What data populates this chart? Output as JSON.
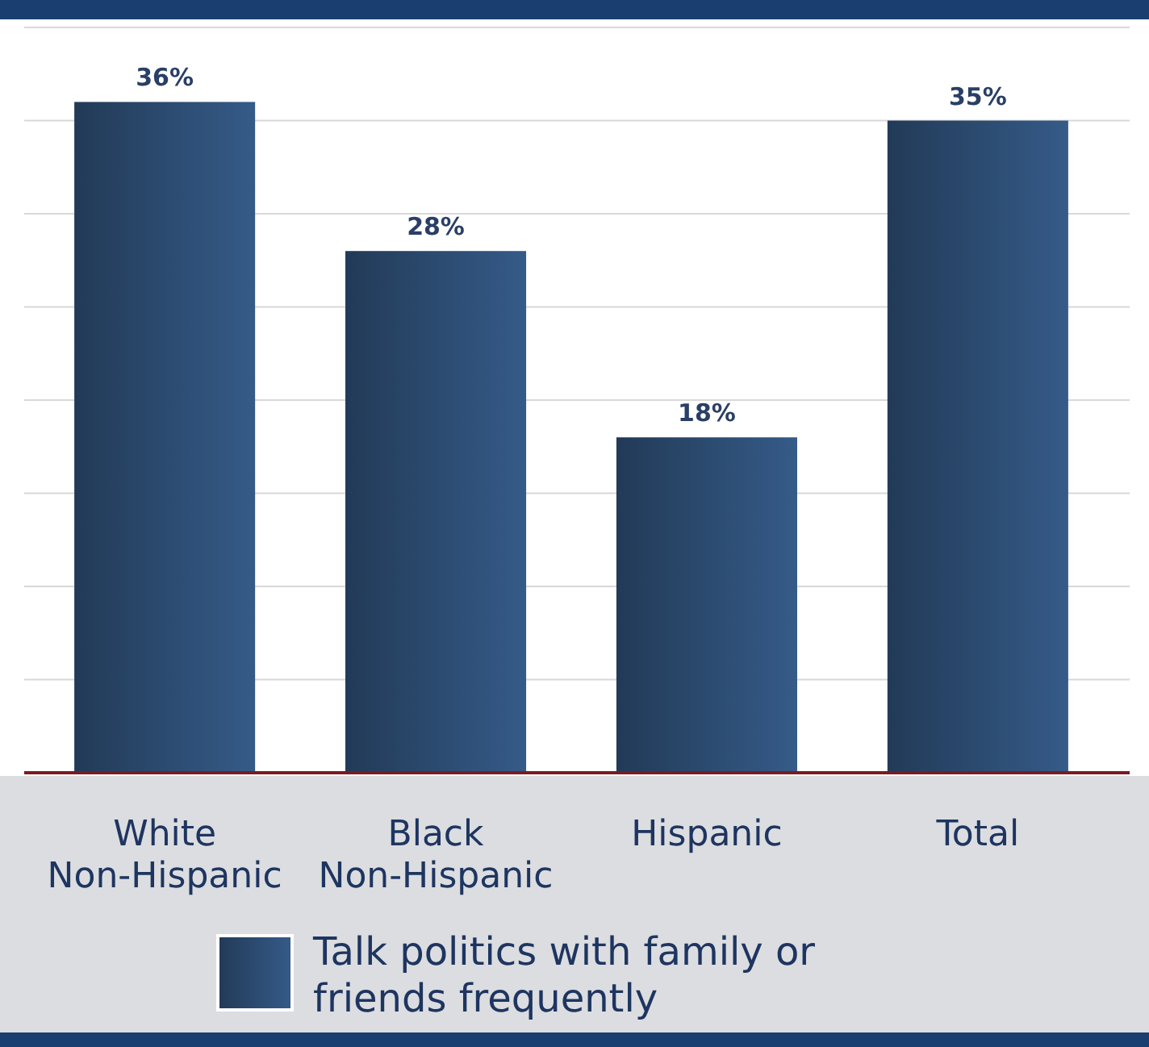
{
  "chart_data": {
    "type": "bar",
    "categories": [
      "White Non-Hispanic",
      "Black Non-Hispanic",
      "Hispanic",
      "Total"
    ],
    "series": [
      {
        "name": "Talk politics with family or friends frequently",
        "color": "#2f5078",
        "values": [
          36,
          28,
          18,
          35
        ],
        "value_labels": [
          "36%",
          "28%",
          "18%",
          "35%"
        ]
      }
    ],
    "ylim": [
      0,
      40
    ],
    "yticks": [
      {
        "value": 5,
        "label": null
      },
      {
        "value": 10,
        "label": null
      },
      {
        "value": 15,
        "label": null
      },
      {
        "value": 20,
        "label": null
      },
      {
        "value": 25,
        "label": null
      },
      {
        "value": 30,
        "label": null
      },
      {
        "value": 35,
        "label": null
      },
      {
        "value": 40,
        "label": null
      }
    ],
    "grid": "y",
    "tick_labels": "x",
    "legend": "bottom"
  }
}
